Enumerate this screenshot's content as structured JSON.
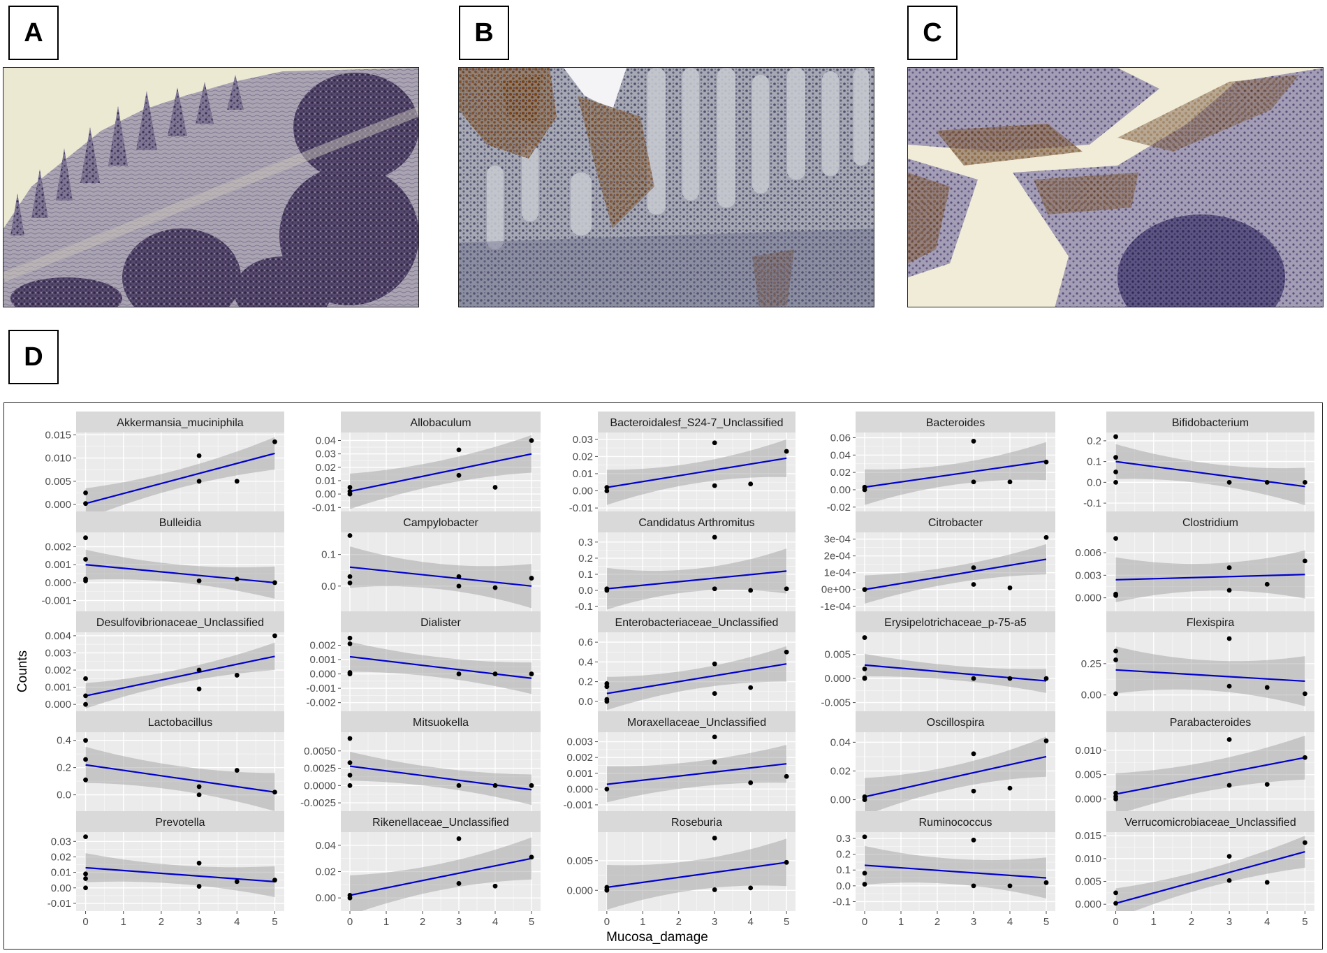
{
  "panel_labels": {
    "a": "A",
    "b": "B",
    "c": "C",
    "d": "D"
  },
  "micrographs": [
    {
      "id": "A",
      "stain": "hematoxylin, lymphoid follicles with villi",
      "brown_staining": "minimal"
    },
    {
      "id": "B",
      "stain": "IHC, brown positive cells in crypts",
      "brown_staining": "moderate"
    },
    {
      "id": "C",
      "stain": "IHC, brown positive cells in mucosa",
      "brown_staining": "moderate"
    }
  ],
  "chart_data": {
    "type": "scatter",
    "xlabel": "Mucosa_damage",
    "ylabel": "Counts",
    "x_ticks": [
      "0",
      "1",
      "2",
      "3",
      "4",
      "5"
    ],
    "xlim": [
      0,
      5
    ],
    "grid": true,
    "fit": "linear regression with 95% confidence band",
    "colors": {
      "panel_bg": "#ebebeb",
      "strip_bg": "#d9d9d9",
      "fit_line": "#0000cc",
      "band": "#999999",
      "points": "#000000"
    },
    "facets": [
      {
        "name": "Akkermansia_muciniphila",
        "yticks": [
          "0.000",
          "0.005",
          "0.010",
          "0.015"
        ],
        "ylim": [
          -0.0015,
          0.0155
        ],
        "points": [
          [
            0,
            0.0025
          ],
          [
            0,
            0.0002
          ],
          [
            3,
            0.0105
          ],
          [
            3,
            0.005
          ],
          [
            4,
            0.005
          ],
          [
            5,
            0.0135
          ]
        ],
        "fit": [
          0.0002,
          0.011
        ],
        "band": [
          0.002,
          0.0035
        ]
      },
      {
        "name": "Allobaculum",
        "yticks": [
          "-0.01",
          "0.00",
          "0.01",
          "0.02",
          "0.03",
          "0.04"
        ],
        "ylim": [
          -0.013,
          0.046
        ],
        "points": [
          [
            0,
            0.005
          ],
          [
            0,
            0.002
          ],
          [
            0,
            0.0
          ],
          [
            3,
            0.033
          ],
          [
            3,
            0.014
          ],
          [
            4,
            0.005
          ],
          [
            5,
            0.04
          ]
        ],
        "fit": [
          0.002,
          0.03
        ],
        "band": [
          0.009,
          0.014
        ]
      },
      {
        "name": "Bacteroidalesf_S24-7_Unclassified",
        "yticks": [
          "-0.01",
          "0.00",
          "0.01",
          "0.02",
          "0.03"
        ],
        "ylim": [
          -0.012,
          0.034
        ],
        "points": [
          [
            0,
            0.002
          ],
          [
            0,
            0.0
          ],
          [
            3,
            0.028
          ],
          [
            3,
            0.003
          ],
          [
            4,
            0.004
          ],
          [
            5,
            0.023
          ]
        ],
        "fit": [
          0.002,
          0.019
        ],
        "band": [
          0.006,
          0.011
        ]
      },
      {
        "name": "Bacteroides",
        "yticks": [
          "-0.02",
          "0.00",
          "0.02",
          "0.04",
          "0.06"
        ],
        "ylim": [
          -0.025,
          0.066
        ],
        "points": [
          [
            0,
            0.003
          ],
          [
            0,
            0.0
          ],
          [
            3,
            0.056
          ],
          [
            3,
            0.009
          ],
          [
            4,
            0.009
          ],
          [
            5,
            0.032
          ]
        ],
        "fit": [
          0.003,
          0.033
        ],
        "band": [
          0.012,
          0.022
        ]
      },
      {
        "name": "Bifidobacterium",
        "yticks": [
          "-0.1",
          "0.0",
          "0.1",
          "0.2"
        ],
        "ylim": [
          -0.14,
          0.24
        ],
        "points": [
          [
            0,
            0.22
          ],
          [
            0,
            0.12
          ],
          [
            0,
            0.05
          ],
          [
            0,
            0.0
          ],
          [
            3,
            0.0
          ],
          [
            4,
            0.0
          ],
          [
            5,
            0.0
          ]
        ],
        "fit": [
          0.1,
          -0.02
        ],
        "band": [
          0.05,
          0.09
        ]
      },
      {
        "name": "Bulleidia",
        "yticks": [
          "-0.001",
          "0.000",
          "0.001",
          "0.002"
        ],
        "ylim": [
          -0.0016,
          0.0028
        ],
        "points": [
          [
            0,
            0.0025
          ],
          [
            0,
            0.0013
          ],
          [
            0,
            0.0002
          ],
          [
            0,
            0.0001
          ],
          [
            3,
            0.0001
          ],
          [
            4,
            0.0002
          ],
          [
            5,
            0.0
          ]
        ],
        "fit": [
          0.001,
          0.0
        ],
        "band": [
          0.0005,
          0.0009
        ]
      },
      {
        "name": "Campylobacter",
        "yticks": [
          "0.0",
          "0.1"
        ],
        "ylim": [
          -0.08,
          0.17
        ],
        "points": [
          [
            0,
            0.16
          ],
          [
            0,
            0.03
          ],
          [
            0,
            0.01
          ],
          [
            3,
            0.03
          ],
          [
            3,
            0.0
          ],
          [
            4,
            -0.005
          ],
          [
            5,
            0.025
          ]
        ],
        "fit": [
          0.06,
          0.0
        ],
        "band": [
          0.04,
          0.07
        ]
      },
      {
        "name": "Candidatus Arthromitus",
        "yticks": [
          "-0.1",
          "0.0",
          "0.1",
          "0.2",
          "0.3"
        ],
        "ylim": [
          -0.13,
          0.36
        ],
        "points": [
          [
            0,
            0.0
          ],
          [
            0,
            0.01
          ],
          [
            3,
            0.33
          ],
          [
            3,
            0.01
          ],
          [
            4,
            0.0
          ],
          [
            5,
            0.01
          ]
        ],
        "fit": [
          0.01,
          0.12
        ],
        "band": [
          0.07,
          0.14
        ]
      },
      {
        "name": "Citrobacter",
        "yticks": [
          "-1e-04",
          "0e+00",
          "1e-04",
          "2e-04",
          "3e-04"
        ],
        "ylim": [
          -0.00013,
          0.00034
        ],
        "points": [
          [
            0,
            0.0
          ],
          [
            0,
            0.0
          ],
          [
            3,
            0.00013
          ],
          [
            3,
            3e-05
          ],
          [
            4,
            1e-05
          ],
          [
            5,
            0.00031
          ]
        ],
        "fit": [
          0.0,
          0.00018
        ],
        "band": [
          5e-05,
          9e-05
        ]
      },
      {
        "name": "Clostridium",
        "yticks": [
          "0.000",
          "0.003",
          "0.006"
        ],
        "ylim": [
          -0.0018,
          0.0087
        ],
        "points": [
          [
            0,
            0.0079
          ],
          [
            0,
            0.0005
          ],
          [
            0,
            0.0003
          ],
          [
            3,
            0.004
          ],
          [
            3,
            0.001
          ],
          [
            4,
            0.0018
          ],
          [
            5,
            0.0049
          ]
        ],
        "fit": [
          0.0024,
          0.0031
        ],
        "band": [
          0.0018,
          0.0032
        ]
      },
      {
        "name": "Desulfovibrionaceae_Unclassified",
        "yticks": [
          "0.000",
          "0.001",
          "0.002",
          "0.003",
          "0.004"
        ],
        "ylim": [
          -0.0004,
          0.0042
        ],
        "points": [
          [
            0,
            0.0015
          ],
          [
            0,
            0.0005
          ],
          [
            0,
            0.0
          ],
          [
            3,
            0.002
          ],
          [
            3,
            0.0009
          ],
          [
            4,
            0.0017
          ],
          [
            5,
            0.004
          ]
        ],
        "fit": [
          0.0005,
          0.0028
        ],
        "band": [
          0.0004,
          0.0008
        ]
      },
      {
        "name": "Dialister",
        "yticks": [
          "-0.002",
          "-0.001",
          "0.000",
          "0.001",
          "0.002"
        ],
        "ylim": [
          -0.0026,
          0.0029
        ],
        "points": [
          [
            0,
            0.0025
          ],
          [
            0,
            0.0021
          ],
          [
            0,
            0.0
          ],
          [
            0,
            0.0001
          ],
          [
            3,
            0.0
          ],
          [
            4,
            0.0
          ],
          [
            5,
            0.0
          ]
        ],
        "fit": [
          0.0012,
          -0.0003
        ],
        "band": [
          0.0007,
          0.0011
        ]
      },
      {
        "name": "Enterobacteriaceae_Unclassified",
        "yticks": [
          "0.0",
          "0.2",
          "0.4",
          "0.6"
        ],
        "ylim": [
          -0.1,
          0.7
        ],
        "points": [
          [
            0,
            0.18
          ],
          [
            0,
            0.15
          ],
          [
            0,
            0.02
          ],
          [
            0,
            0.0
          ],
          [
            3,
            0.38
          ],
          [
            3,
            0.08
          ],
          [
            4,
            0.14
          ],
          [
            5,
            0.5
          ]
        ],
        "fit": [
          0.08,
          0.38
        ],
        "band": [
          0.1,
          0.18
        ]
      },
      {
        "name": "Erysipelotrichaceae_p-75-a5",
        "yticks": [
          "-0.005",
          "0.000",
          "0.005"
        ],
        "ylim": [
          -0.0068,
          0.0096
        ],
        "points": [
          [
            0,
            0.0085
          ],
          [
            0,
            0.002
          ],
          [
            0,
            0.0001
          ],
          [
            0,
            0.0
          ],
          [
            3,
            0.0
          ],
          [
            4,
            0.0
          ],
          [
            5,
            0.0
          ]
        ],
        "fit": [
          0.0028,
          -0.0005
        ],
        "band": [
          0.0015,
          0.0025
        ]
      },
      {
        "name": "Flexispira",
        "yticks": [
          "0.00",
          "0.25"
        ],
        "ylim": [
          -0.13,
          0.5
        ],
        "points": [
          [
            0,
            0.35
          ],
          [
            0,
            0.28
          ],
          [
            0,
            0.01
          ],
          [
            3,
            0.45
          ],
          [
            3,
            0.07
          ],
          [
            4,
            0.06
          ],
          [
            5,
            0.01
          ]
        ],
        "fit": [
          0.2,
          0.11
        ],
        "band": [
          0.12,
          0.2
        ]
      },
      {
        "name": "Lactobacillus",
        "yticks": [
          "0.0",
          "0.2",
          "0.4"
        ],
        "ylim": [
          -0.12,
          0.46
        ],
        "points": [
          [
            0,
            0.4
          ],
          [
            0,
            0.26
          ],
          [
            0,
            0.11
          ],
          [
            3,
            0.06
          ],
          [
            3,
            0.0
          ],
          [
            4,
            0.18
          ],
          [
            5,
            0.02
          ]
        ],
        "fit": [
          0.22,
          0.02
        ],
        "band": [
          0.09,
          0.14
        ]
      },
      {
        "name": "Mitsuokella",
        "yticks": [
          "-0.0025",
          "0.0000",
          "0.0025",
          "0.0050"
        ],
        "ylim": [
          -0.0037,
          0.0077
        ],
        "points": [
          [
            0,
            0.0068
          ],
          [
            0,
            0.0033
          ],
          [
            0,
            0.0015
          ],
          [
            0,
            0.0
          ],
          [
            3,
            0.0
          ],
          [
            4,
            0.0
          ],
          [
            5,
            0.0
          ]
        ],
        "fit": [
          0.0028,
          -0.0006
        ],
        "band": [
          0.0014,
          0.0022
        ]
      },
      {
        "name": "Moraxellaceae_Unclassified",
        "yticks": [
          "-0.001",
          "0.000",
          "0.001",
          "0.002",
          "0.003"
        ],
        "ylim": [
          -0.0014,
          0.0036
        ],
        "points": [
          [
            0,
            0.0
          ],
          [
            3,
            0.0033
          ],
          [
            3,
            0.0017
          ],
          [
            4,
            0.0004
          ],
          [
            5,
            0.0008
          ]
        ],
        "fit": [
          0.0003,
          0.0016
        ],
        "band": [
          0.0008,
          0.0012
        ]
      },
      {
        "name": "Oscillospira",
        "yticks": [
          "0.00",
          "0.02",
          "0.04"
        ],
        "ylim": [
          -0.008,
          0.047
        ],
        "points": [
          [
            0,
            0.002
          ],
          [
            0,
            0.0
          ],
          [
            3,
            0.032
          ],
          [
            3,
            0.006
          ],
          [
            4,
            0.008
          ],
          [
            5,
            0.041
          ]
        ],
        "fit": [
          0.002,
          0.03
        ],
        "band": [
          0.008,
          0.014
        ]
      },
      {
        "name": "Parabacteroides",
        "yticks": [
          "0.000",
          "0.005",
          "0.010"
        ],
        "ylim": [
          -0.0025,
          0.0137
        ],
        "points": [
          [
            0,
            0.0012
          ],
          [
            0,
            0.0005
          ],
          [
            0,
            0.0
          ],
          [
            3,
            0.0122
          ],
          [
            3,
            0.0028
          ],
          [
            4,
            0.003
          ],
          [
            5,
            0.0085
          ]
        ],
        "fit": [
          0.001,
          0.0085
        ],
        "band": [
          0.003,
          0.0045
        ]
      },
      {
        "name": "Prevotella",
        "yticks": [
          "-0.01",
          "0.00",
          "0.01",
          "0.02",
          "0.03"
        ],
        "ylim": [
          -0.015,
          0.036
        ],
        "points": [
          [
            0,
            0.033
          ],
          [
            0,
            0.009
          ],
          [
            0,
            0.006
          ],
          [
            0,
            0.0
          ],
          [
            3,
            0.016
          ],
          [
            3,
            0.001
          ],
          [
            4,
            0.004
          ],
          [
            5,
            0.005
          ]
        ],
        "fit": [
          0.013,
          0.004
        ],
        "band": [
          0.006,
          0.01
        ]
      },
      {
        "name": "Rikenellaceae_Unclassified",
        "yticks": [
          "0.00",
          "0.02",
          "0.04"
        ],
        "ylim": [
          -0.01,
          0.05
        ],
        "points": [
          [
            0,
            0.002
          ],
          [
            0,
            0.0
          ],
          [
            3,
            0.045
          ],
          [
            3,
            0.011
          ],
          [
            4,
            0.009
          ],
          [
            5,
            0.031
          ]
        ],
        "fit": [
          0.002,
          0.03
        ],
        "band": [
          0.01,
          0.016
        ]
      },
      {
        "name": "Roseburia",
        "yticks": [
          "0.000",
          "0.005"
        ],
        "ylim": [
          -0.0035,
          0.0098
        ],
        "points": [
          [
            0,
            0.0005
          ],
          [
            0,
            0.0001
          ],
          [
            0,
            0.0
          ],
          [
            3,
            0.0088
          ],
          [
            3,
            0.0001
          ],
          [
            4,
            0.0004
          ],
          [
            5,
            0.0047
          ]
        ],
        "fit": [
          0.0005,
          0.0047
        ],
        "band": [
          0.0025,
          0.004
        ]
      },
      {
        "name": "Ruminococcus",
        "yticks": [
          "-0.1",
          "0.0",
          "0.1",
          "0.2",
          "0.3"
        ],
        "ylim": [
          -0.16,
          0.34
        ],
        "points": [
          [
            0,
            0.31
          ],
          [
            0,
            0.08
          ],
          [
            0,
            0.01
          ],
          [
            3,
            0.29
          ],
          [
            3,
            0.0
          ],
          [
            4,
            0.0
          ],
          [
            5,
            0.02
          ]
        ],
        "fit": [
          0.13,
          0.05
        ],
        "band": [
          0.08,
          0.13
        ]
      },
      {
        "name": "Verrucomicrobiaceae_Unclassified",
        "yticks": [
          "0.000",
          "0.005",
          "0.010",
          "0.015"
        ],
        "ylim": [
          -0.0015,
          0.0158
        ],
        "points": [
          [
            0,
            0.0025
          ],
          [
            0,
            0.0002
          ],
          [
            3,
            0.0105
          ],
          [
            3,
            0.0052
          ],
          [
            4,
            0.0048
          ],
          [
            5,
            0.0135
          ]
        ],
        "fit": [
          0.0002,
          0.0115
        ],
        "band": [
          0.002,
          0.0035
        ]
      }
    ]
  }
}
